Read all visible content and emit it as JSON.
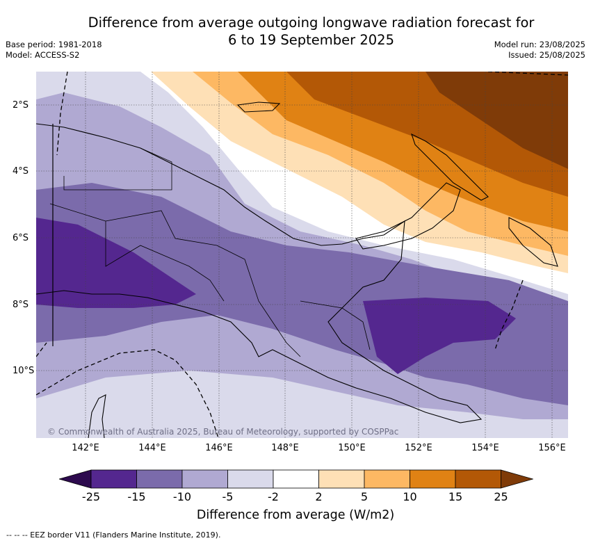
{
  "title_line1": "Difference from average outgoing longwave radiation forecast for",
  "title_line2": "6 to 19 September 2025",
  "meta_left": {
    "base_period": "Base period: 1981-2018",
    "model": "Model: ACCESS-S2"
  },
  "meta_right": {
    "model_run": "Model run: 23/08/2025",
    "issued": "Issued: 25/08/2025"
  },
  "longitude_ticks": [
    "142°E",
    "144°E",
    "146°E",
    "148°E",
    "150°E",
    "152°E",
    "154°E",
    "156°E"
  ],
  "latitude_ticks": [
    "2°S",
    "4°S",
    "6°S",
    "8°S",
    "10°S"
  ],
  "copyright": "© Commonwealth of Australia 2025, Bureau of Meteorology, supported by COSPPac",
  "colorbar": {
    "ticks": [
      "-25",
      "-15",
      "-10",
      "-5",
      "-2",
      "2",
      "5",
      "10",
      "15",
      "25"
    ],
    "colors": [
      "#2d0a4e",
      "#54278f",
      "#7b6bab",
      "#b0a9d2",
      "#dadaeb",
      "#ffffff",
      "#fee0b6",
      "#fdb863",
      "#e08214",
      "#b35806",
      "#7f3b08"
    ],
    "label": "Difference from average (W/m2)"
  },
  "footer": "--  --  -- EEZ border V11 (Flanders Marine Institute, 2019)."
}
